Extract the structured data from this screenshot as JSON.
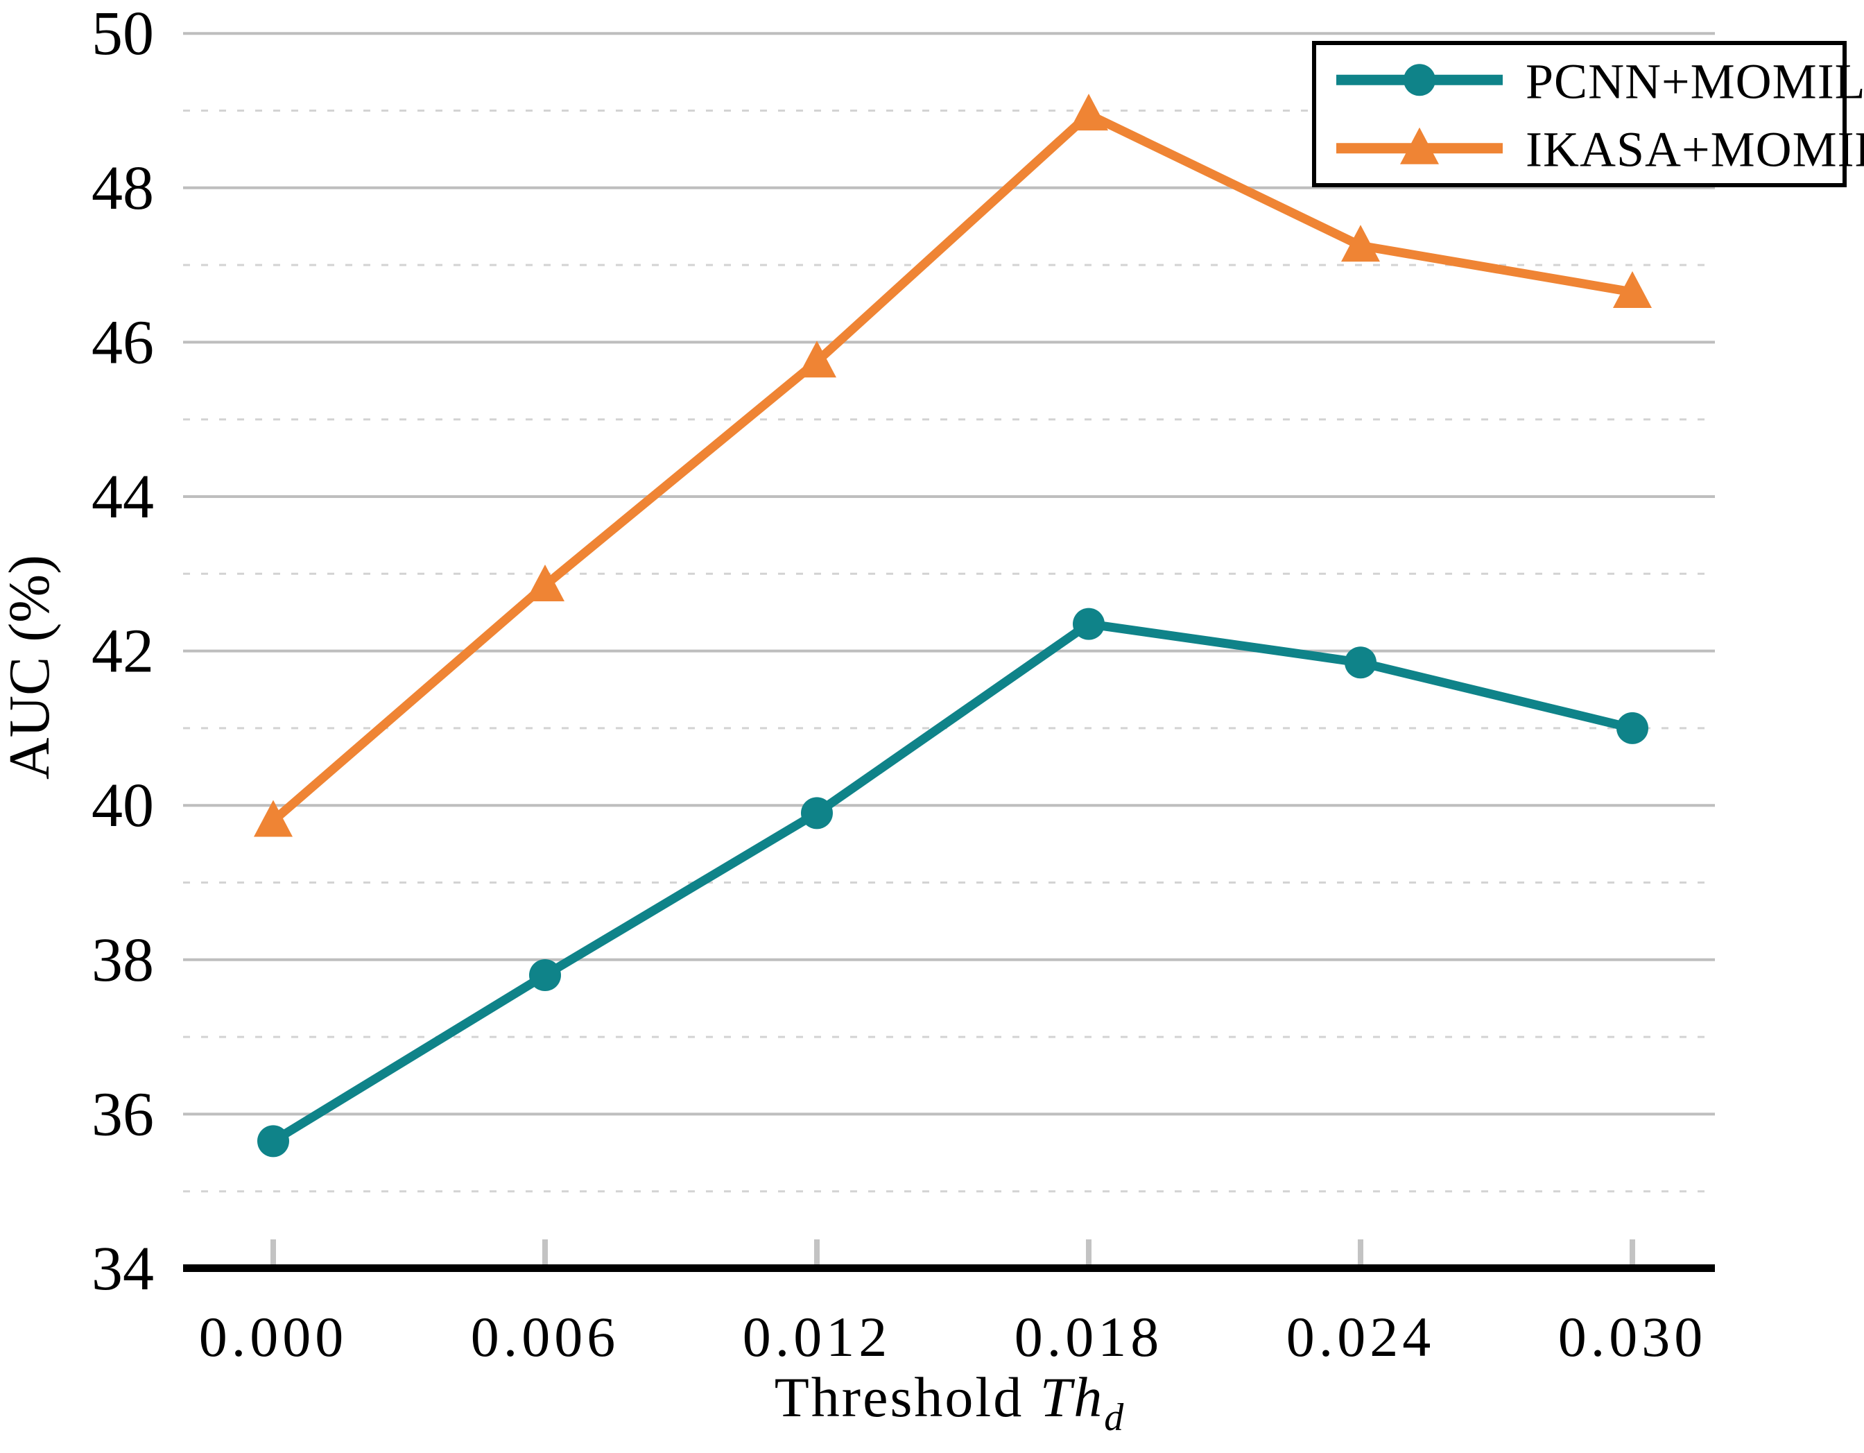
{
  "chart_data": {
    "type": "line",
    "title": "",
    "ylabel": "AUC (%)",
    "xlabel": {
      "prefix": "Threshold ",
      "variable": "Th",
      "subscript": "d"
    },
    "x": [
      0.0,
      0.006,
      0.012,
      0.018,
      0.024,
      0.03
    ],
    "x_tick_labels": [
      "0.000",
      "0.006",
      "0.012",
      "0.018",
      "0.024",
      "0.030"
    ],
    "y_ticks": [
      34,
      36,
      38,
      40,
      42,
      44,
      46,
      48,
      50
    ],
    "y_tick_labels": [
      "34",
      "36",
      "38",
      "40",
      "42",
      "44",
      "46",
      "48",
      "50"
    ],
    "ylim": [
      34,
      50.3
    ],
    "xlim": [
      -0.002,
      0.0318
    ],
    "grid": {
      "major_solid_values": [
        36,
        38,
        40,
        42,
        44,
        46,
        48,
        50
      ],
      "minor_dashed_values": [
        35,
        37,
        39,
        41,
        43,
        45,
        47,
        49
      ]
    },
    "legend": {
      "position": "top-right",
      "entries": [
        "PCNN+MOMIL",
        "IKASA+MOMIL"
      ]
    },
    "series": [
      {
        "name": "PCNN+MOMIL",
        "marker": "circle",
        "color": "#0F8389",
        "values": [
          35.65,
          37.8,
          39.9,
          42.35,
          41.85,
          41.0
        ]
      },
      {
        "name": "IKASA+MOMIL",
        "marker": "triangle-up",
        "color": "#EF8434",
        "values": [
          39.8,
          42.85,
          45.75,
          48.95,
          47.25,
          46.65
        ]
      }
    ]
  },
  "colors": {
    "background": "#ffffff",
    "axis_spine": "#000000",
    "tick_mark": "#c3c3c3",
    "grid_solid": "#bebebe",
    "grid_dashed": "#d3d3d3",
    "text": "#000000",
    "legend_border": "#000000",
    "legend_fill": "#ffffff"
  }
}
